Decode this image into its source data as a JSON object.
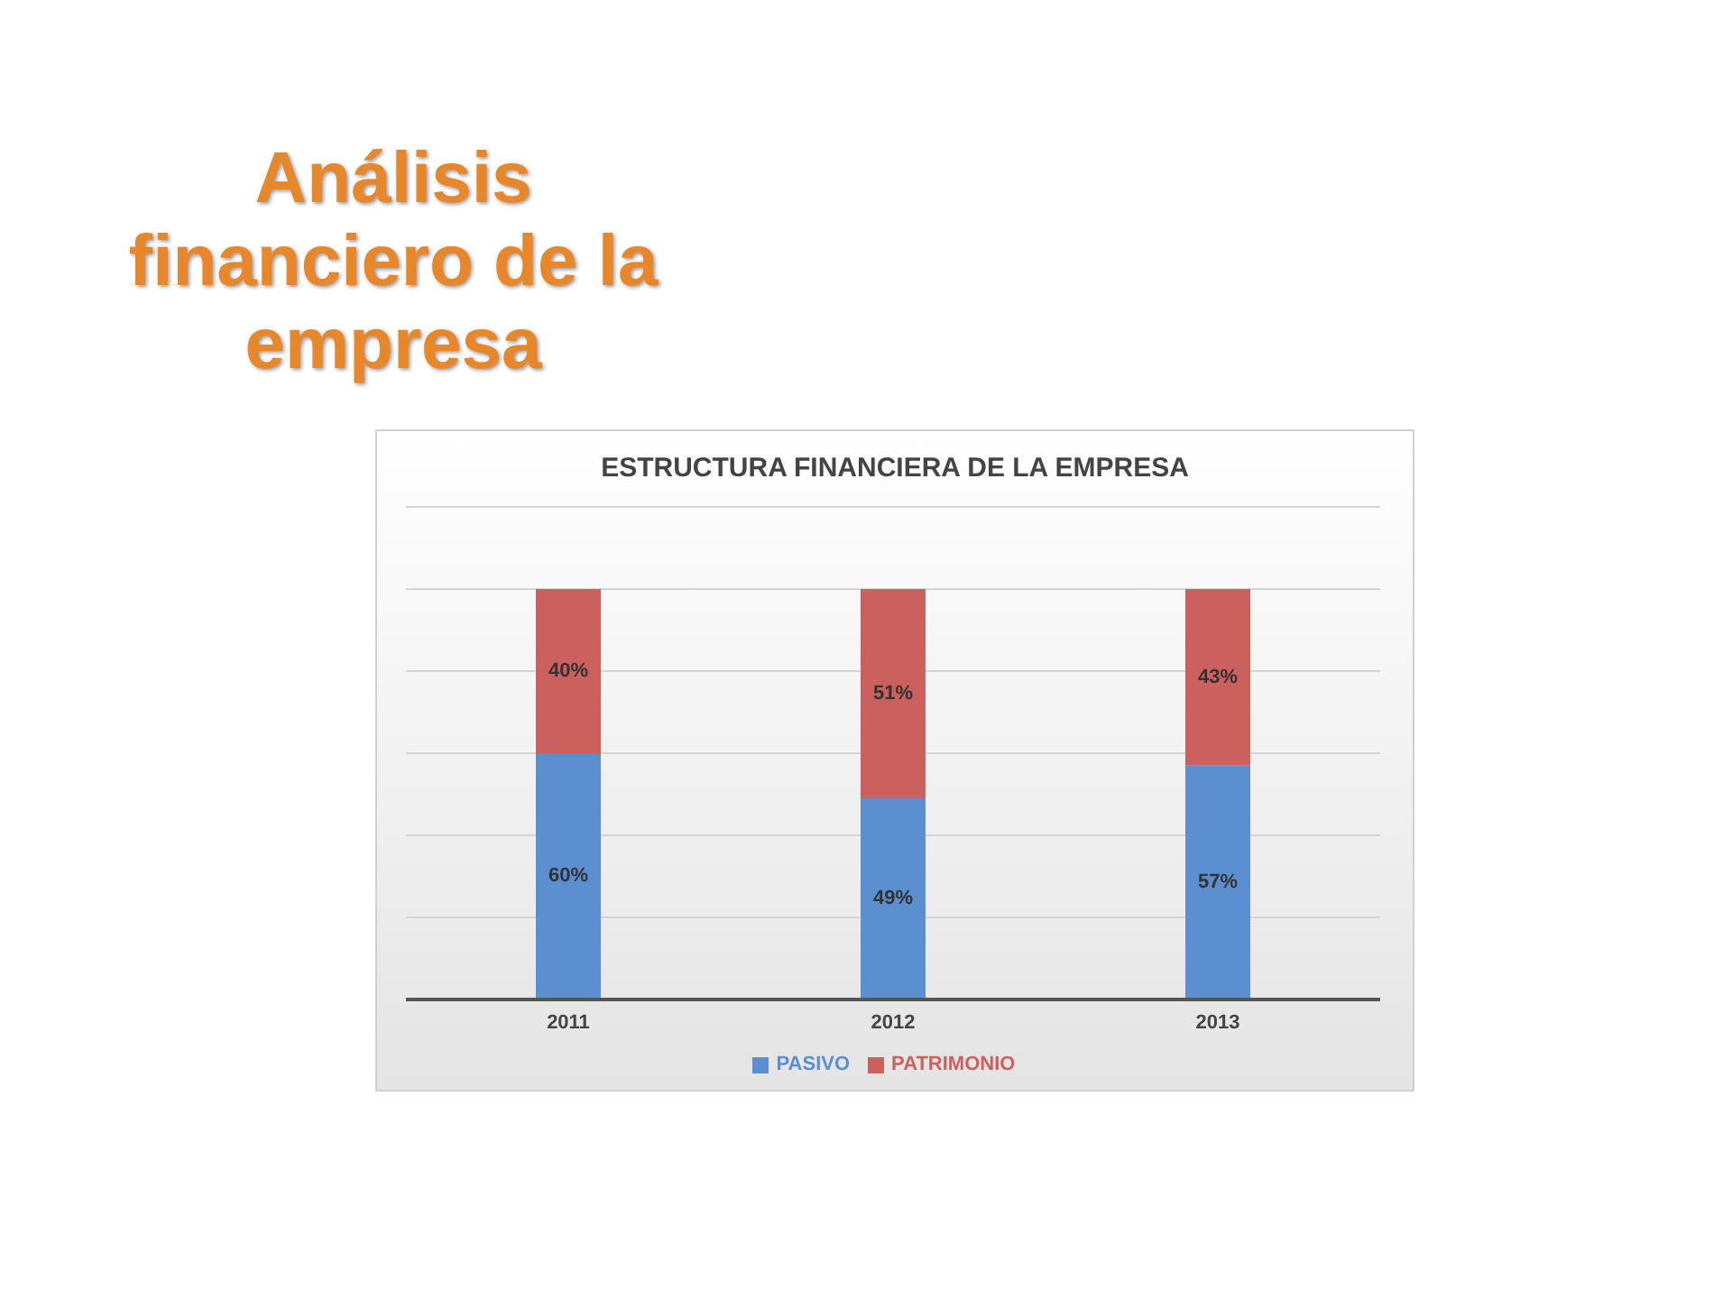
{
  "chart_data": {
    "type": "bar",
    "title": "Análisis financiero de la empresa",
    "subtitle": "ESTRUCTURA FINANCIERA DE LA EMPRESA",
    "categories": [
      "2011",
      "2012",
      "2013"
    ],
    "stacked": true,
    "series": [
      {
        "name": "PASIVO",
        "color": "#5b8fd0",
        "values": [
          60,
          49,
          57
        ],
        "value_labels": [
          "60%",
          "49%",
          "57%"
        ]
      },
      {
        "name": "PATRIMONIO",
        "color": "#cc605f",
        "values": [
          40,
          51,
          43
        ],
        "value_labels": [
          "40%",
          "51%",
          "43%"
        ]
      }
    ],
    "ylim": [
      0,
      120
    ],
    "yticks": [
      {
        "value": 0,
        "label": null
      },
      {
        "value": 20,
        "label": null
      },
      {
        "value": 40,
        "label": null
      },
      {
        "value": 60,
        "label": null
      },
      {
        "value": 80,
        "label": null
      },
      {
        "value": 100,
        "label": null
      },
      {
        "value": 120,
        "label": null
      }
    ],
    "tick_labels": "x",
    "grid": "y",
    "legend": "bottom"
  }
}
